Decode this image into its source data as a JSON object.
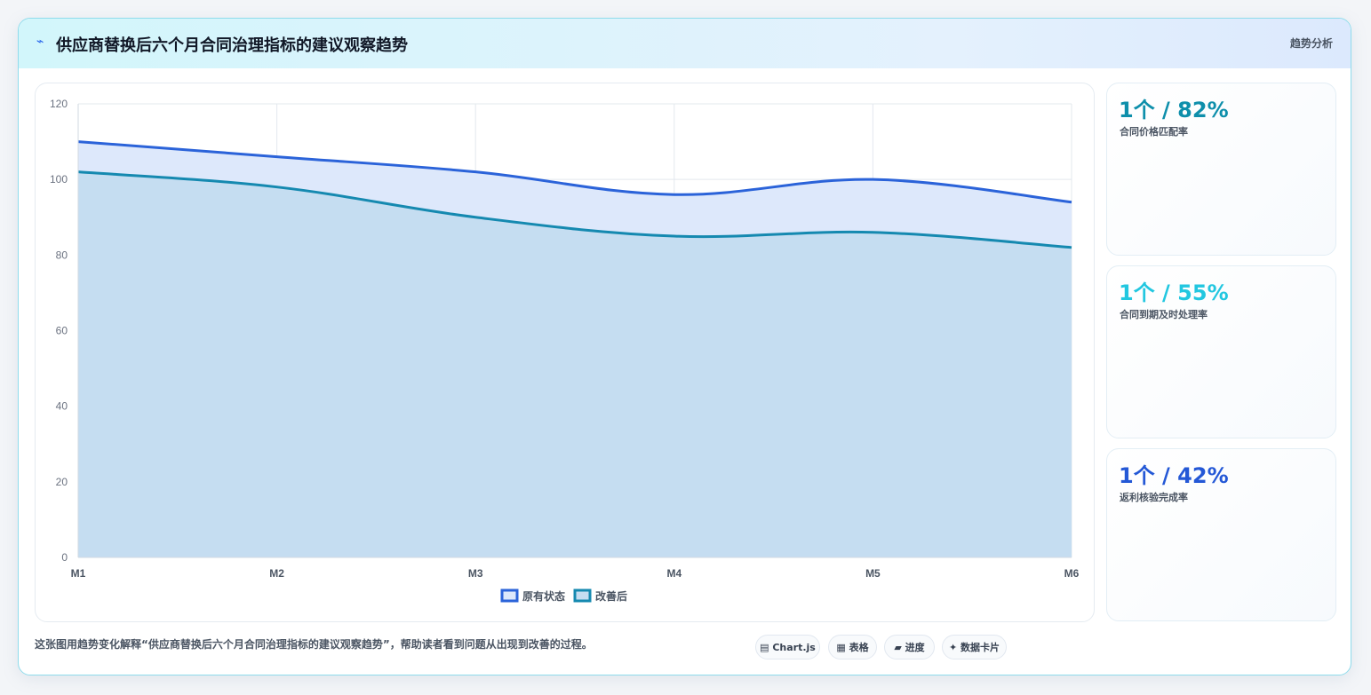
{
  "header": {
    "icon": "trend-icon",
    "title": "供应商替换后六个月合同治理指标的建议观察趋势",
    "badge": "趋势分析"
  },
  "chart_data": {
    "type": "area",
    "categories": [
      "M1",
      "M2",
      "M3",
      "M4",
      "M5",
      "M6"
    ],
    "series": [
      {
        "name": "原有状态",
        "values": [
          110,
          106,
          102,
          96,
          100,
          94
        ],
        "color": "#2b63d9",
        "fill": "#dde8fb"
      },
      {
        "name": "改善后",
        "values": [
          102,
          98,
          90,
          85,
          86,
          82
        ],
        "color": "#1589b0",
        "fill": "#c5ddf1"
      }
    ],
    "ylim": [
      0,
      120
    ],
    "yticks": [
      0,
      20,
      40,
      60,
      80,
      100,
      120
    ],
    "grid": true,
    "legend": "bottom"
  },
  "stats": [
    {
      "value": "1个 / 82%",
      "label": "合同价格匹配率",
      "color": "#0e8fab"
    },
    {
      "value": "1个 / 55%",
      "label": "合同到期及时处理率",
      "color": "#22c7e0"
    },
    {
      "value": "1个 / 42%",
      "label": "返利核验完成率",
      "color": "#2458d6"
    }
  ],
  "footer": {
    "text": "这张图用趋势变化解释“供应商替换后六个月合同治理指标的建议观察趋势”，帮助读者看到问题从出现到改善的过程。"
  },
  "tags": [
    "▤ Chart.js",
    "▦ 表格",
    "▰ 进度",
    "✦ 数据卡片"
  ]
}
